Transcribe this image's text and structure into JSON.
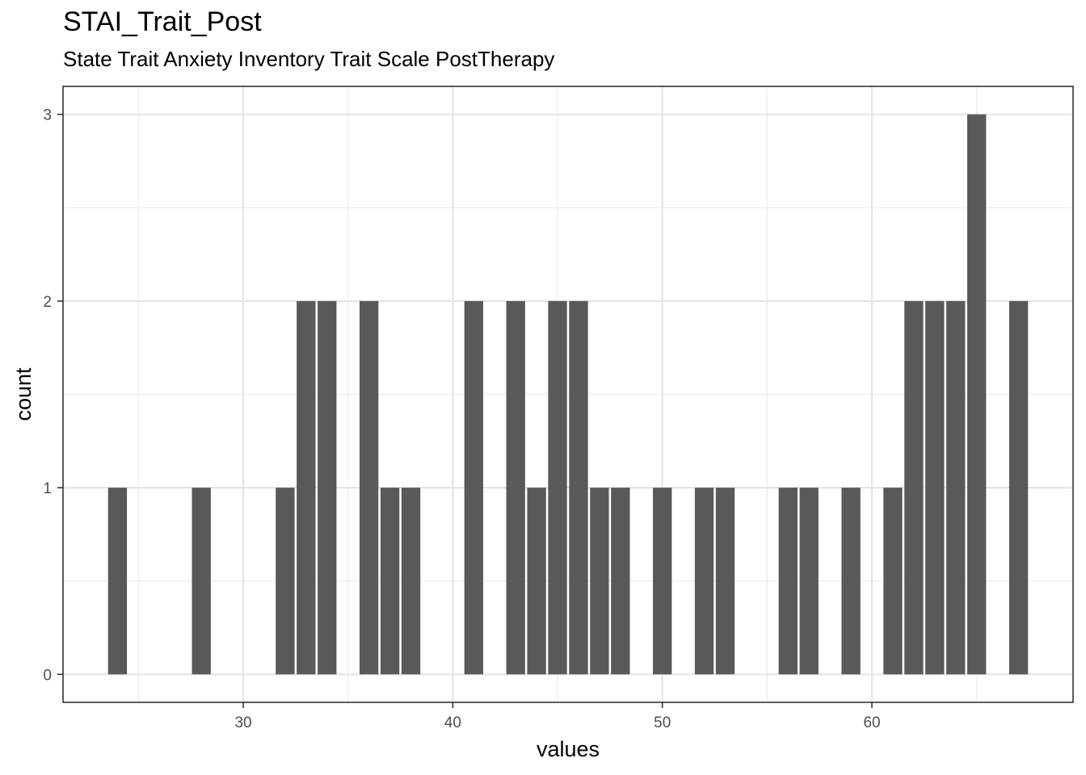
{
  "chart_data": {
    "type": "bar",
    "title": "STAI_Trait_Post",
    "subtitle": "State Trait Anxiety Inventory Trait Scale PostTherapy",
    "xlabel": "values",
    "ylabel": "count",
    "xlim": [
      21.4,
      69.6
    ],
    "ylim": [
      -0.15,
      3.15
    ],
    "x_ticks": [
      30,
      40,
      50,
      60
    ],
    "y_ticks": [
      0,
      1,
      2,
      3
    ],
    "grid": true,
    "bar_color": "#595959",
    "bars": [
      {
        "x": 24,
        "count": 1
      },
      {
        "x": 28,
        "count": 1
      },
      {
        "x": 32,
        "count": 1
      },
      {
        "x": 33,
        "count": 2
      },
      {
        "x": 34,
        "count": 2
      },
      {
        "x": 36,
        "count": 2
      },
      {
        "x": 37,
        "count": 1
      },
      {
        "x": 38,
        "count": 1
      },
      {
        "x": 41,
        "count": 2
      },
      {
        "x": 43,
        "count": 2
      },
      {
        "x": 44,
        "count": 1
      },
      {
        "x": 45,
        "count": 2
      },
      {
        "x": 46,
        "count": 2
      },
      {
        "x": 47,
        "count": 1
      },
      {
        "x": 48,
        "count": 1
      },
      {
        "x": 50,
        "count": 1
      },
      {
        "x": 52,
        "count": 1
      },
      {
        "x": 53,
        "count": 1
      },
      {
        "x": 56,
        "count": 1
      },
      {
        "x": 57,
        "count": 1
      },
      {
        "x": 59,
        "count": 1
      },
      {
        "x": 61,
        "count": 1
      },
      {
        "x": 62,
        "count": 2
      },
      {
        "x": 63,
        "count": 2
      },
      {
        "x": 64,
        "count": 2
      },
      {
        "x": 65,
        "count": 3
      },
      {
        "x": 67,
        "count": 2
      }
    ]
  }
}
